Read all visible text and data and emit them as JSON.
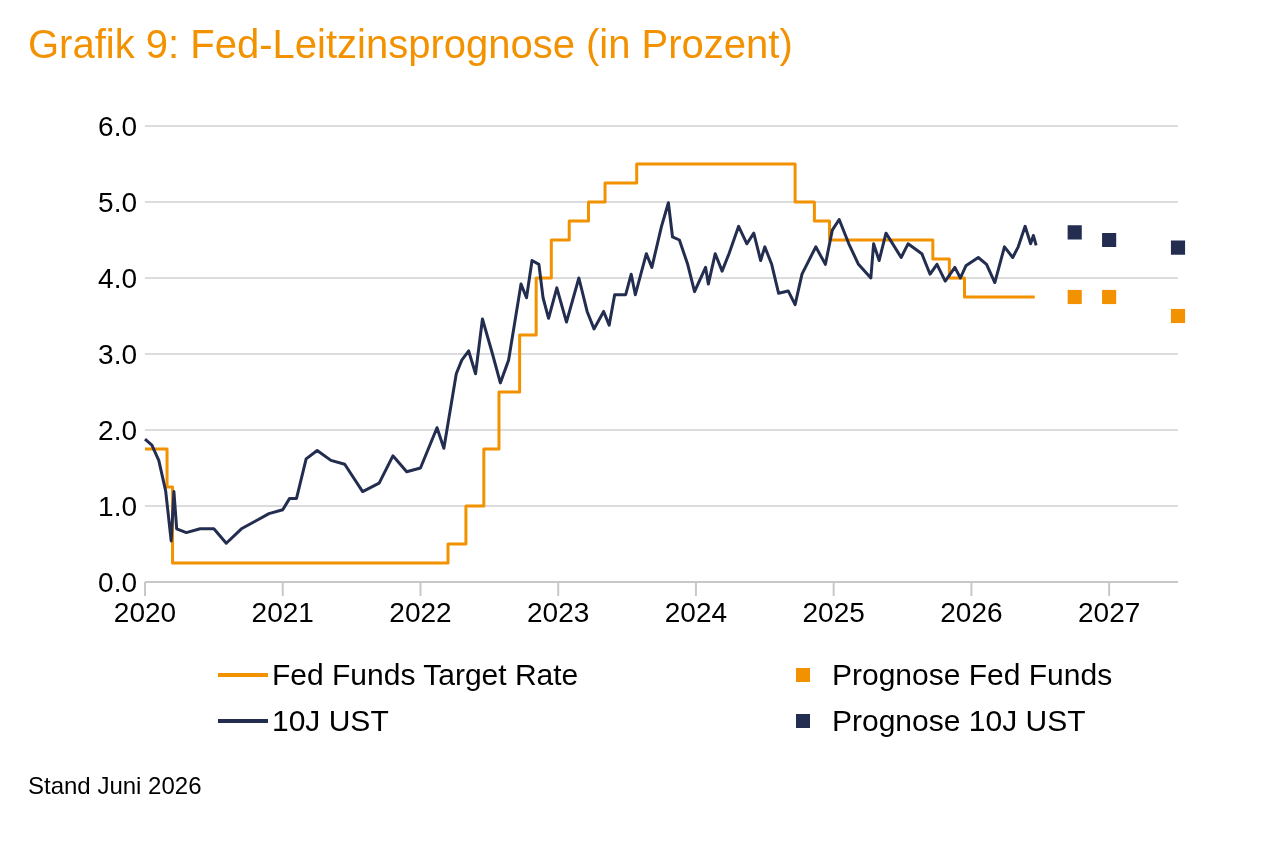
{
  "chart_data": {
    "type": "line",
    "title": "Grafik 9: Fed-Leitzinsprognose (in Prozent)",
    "annotations": [
      "Stand Juni 2026"
    ],
    "xlim": [
      2020,
      2027.5
    ],
    "xticks": [
      2020,
      2021,
      2022,
      2023,
      2024,
      2025,
      2026,
      2027
    ],
    "ylim": [
      0,
      6
    ],
    "yticks": [
      {
        "value": 0,
        "label": "0.0"
      },
      {
        "value": 1,
        "label": "1.0"
      },
      {
        "value": 2,
        "label": "2.0"
      },
      {
        "value": 3,
        "label": "3.0"
      },
      {
        "value": 4,
        "label": "4.0"
      },
      {
        "value": 5,
        "label": "5.0"
      },
      {
        "value": 6,
        "label": "6.0"
      }
    ],
    "grid": "y",
    "legend": "bottom",
    "line_style": "solid",
    "series": [
      {
        "name": "Fed Funds Target Rate",
        "type": "step",
        "color": "#f39200",
        "x": [
          2020,
          2020.16,
          2020.2,
          2022.2,
          2022.33,
          2022.46,
          2022.57,
          2022.72,
          2022.84,
          2022.95,
          2023.08,
          2023.22,
          2023.34,
          2023.57,
          2024.72,
          2024.86,
          2024.97,
          2025.72,
          2025.84,
          2025.95,
          2026.46
        ],
        "values": [
          1.75,
          1.25,
          0.25,
          0.5,
          1.0,
          1.75,
          2.5,
          3.25,
          4.0,
          4.5,
          4.75,
          5.0,
          5.25,
          5.5,
          5.0,
          4.75,
          4.5,
          4.25,
          4.0,
          3.75,
          3.75
        ]
      },
      {
        "name": "10J UST",
        "color": "#232d4f",
        "x": [
          2020,
          2020.05,
          2020.1,
          2020.15,
          2020.19,
          2020.21,
          2020.23,
          2020.3,
          2020.4,
          2020.5,
          2020.59,
          2020.7,
          2020.8,
          2020.9,
          2021,
          2021.05,
          2021.1,
          2021.17,
          2021.25,
          2021.35,
          2021.45,
          2021.58,
          2021.7,
          2021.8,
          2021.9,
          2022,
          2022.12,
          2022.17,
          2022.26,
          2022.3,
          2022.35,
          2022.4,
          2022.45,
          2022.52,
          2022.58,
          2022.64,
          2022.73,
          2022.77,
          2022.81,
          2022.86,
          2022.89,
          2022.93,
          2022.99,
          2023.06,
          2023.15,
          2023.21,
          2023.26,
          2023.33,
          2023.37,
          2023.41,
          2023.49,
          2023.53,
          2023.56,
          2023.64,
          2023.68,
          2023.75,
          2023.8,
          2023.83,
          2023.88,
          2023.94,
          2023.99,
          2024.07,
          2024.09,
          2024.14,
          2024.19,
          2024.24,
          2024.31,
          2024.37,
          2024.42,
          2024.47,
          2024.5,
          2024.55,
          2024.6,
          2024.67,
          2024.72,
          2024.77,
          2024.87,
          2024.94,
          2024.99,
          2025.04,
          2025.11,
          2025.18,
          2025.27,
          2025.29,
          2025.33,
          2025.38,
          2025.49,
          2025.54,
          2025.64,
          2025.7,
          2025.75,
          2025.81,
          2025.88,
          2025.92,
          2025.96,
          2026.05,
          2026.11,
          2026.17,
          2026.24,
          2026.3,
          2026.34,
          2026.39,
          2026.43,
          2026.45,
          2026.47
        ],
        "values": [
          1.88,
          1.8,
          1.6,
          1.2,
          0.54,
          1.19,
          0.7,
          0.65,
          0.7,
          0.7,
          0.51,
          0.7,
          0.8,
          0.9,
          0.95,
          1.1,
          1.1,
          1.62,
          1.73,
          1.6,
          1.55,
          1.19,
          1.3,
          1.66,
          1.45,
          1.5,
          2.03,
          1.76,
          2.74,
          2.92,
          3.04,
          2.74,
          3.46,
          3.02,
          2.62,
          2.92,
          3.92,
          3.74,
          4.23,
          4.18,
          3.74,
          3.47,
          3.87,
          3.42,
          4.0,
          3.56,
          3.33,
          3.56,
          3.38,
          3.78,
          3.78,
          4.05,
          3.78,
          4.32,
          4.14,
          4.68,
          4.99,
          4.54,
          4.5,
          4.18,
          3.82,
          4.14,
          3.92,
          4.32,
          4.09,
          4.32,
          4.68,
          4.45,
          4.59,
          4.23,
          4.41,
          4.18,
          3.8,
          3.83,
          3.65,
          4.05,
          4.41,
          4.18,
          4.63,
          4.77,
          4.45,
          4.18,
          4.0,
          4.45,
          4.23,
          4.59,
          4.27,
          4.45,
          4.32,
          4.05,
          4.18,
          3.96,
          4.14,
          4.0,
          4.16,
          4.27,
          4.18,
          3.94,
          4.41,
          4.27,
          4.41,
          4.68,
          4.45,
          4.56,
          4.43
        ]
      },
      {
        "name": "Prognose Fed Funds",
        "type": "scatter",
        "marker": "square",
        "color": "#f39200",
        "x": [
          2026.75,
          2027,
          2027.5
        ],
        "values": [
          3.75,
          3.75,
          3.5
        ]
      },
      {
        "name": "Prognose 10J UST",
        "type": "scatter",
        "marker": "square",
        "color": "#232d4f",
        "x": [
          2026.75,
          2027,
          2027.5
        ],
        "values": [
          4.6,
          4.5,
          4.4
        ]
      }
    ]
  }
}
